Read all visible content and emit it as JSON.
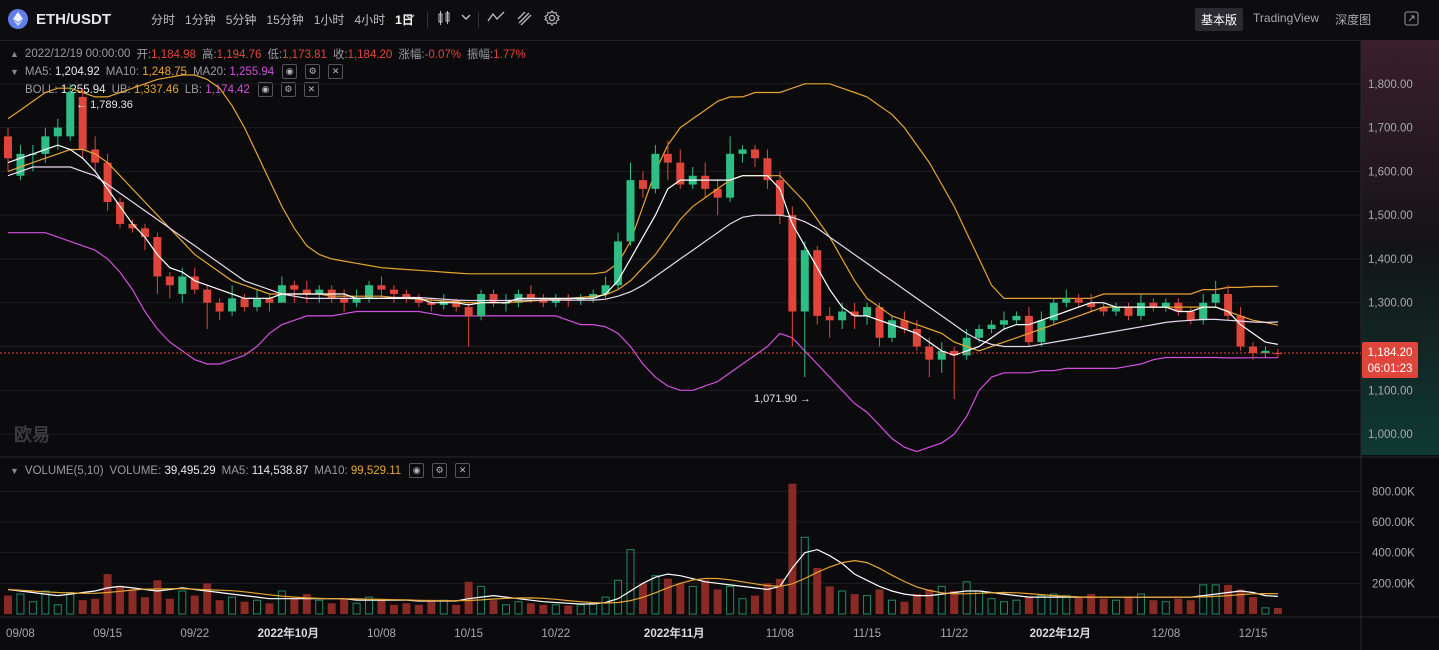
{
  "header": {
    "pair": "ETH/USDT",
    "intervals": [
      "分时",
      "1分钟",
      "5分钟",
      "15分钟",
      "1小时",
      "4小时",
      "1日"
    ],
    "active_interval": "1日",
    "views": [
      "基本版",
      "TradingView",
      "深度图"
    ],
    "active_view": "基本版"
  },
  "ohlc_legend": {
    "date": "2022/12/19 00:00:00",
    "open_label": "开:",
    "open": "1,184.98",
    "high_label": "高:",
    "high": "1,194.76",
    "low_label": "低:",
    "low": "1,173.81",
    "close_label": "收:",
    "close": "1,184.20",
    "change_label": "涨幅:",
    "change": "-0.07%",
    "amp_label": "振幅:",
    "amp": "1.77%"
  },
  "ma_legend": {
    "ma5_label": "MA5:",
    "ma5": "1,204.92",
    "ma10_label": "MA10:",
    "ma10": "1,248.75",
    "ma20_label": "MA20:",
    "ma20": "1,255.94"
  },
  "boll_legend": {
    "label": "BOLL:",
    "mid": "1,255.94",
    "ub_label": "UB:",
    "ub": "1,337.46",
    "lb_label": "LB:",
    "lb": "1,174.42"
  },
  "volume_legend": {
    "label": "VOLUME(5,10)",
    "vol_label": "VOLUME:",
    "vol": "39,495.29",
    "ma5_label": "MA5:",
    "ma5": "114,538.87",
    "ma10_label": "MA10:",
    "ma10": "99,529.11"
  },
  "annotations": {
    "high_marker": "1,789.36",
    "low_marker": "1,071.90"
  },
  "price_tag": {
    "price": "1,184.20",
    "countdown": "06:01:23"
  },
  "watermark": "欧易",
  "price_axis": [
    "1,800.00",
    "1,700.00",
    "1,600.00",
    "1,500.00",
    "1,400.00",
    "1,300.00",
    "1,200.00",
    "1,100.00",
    "1,000.00"
  ],
  "volume_axis": [
    "800.00K",
    "600.00K",
    "400.00K",
    "200.00K"
  ],
  "date_axis": [
    {
      "label": "09/08",
      "bold": false
    },
    {
      "label": "09/15",
      "bold": false
    },
    {
      "label": "09/22",
      "bold": false
    },
    {
      "label": "2022年10月",
      "bold": true
    },
    {
      "label": "10/08",
      "bold": false
    },
    {
      "label": "10/15",
      "bold": false
    },
    {
      "label": "10/22",
      "bold": false
    },
    {
      "label": "2022年11月",
      "bold": true
    },
    {
      "label": "11/08",
      "bold": false
    },
    {
      "label": "11/15",
      "bold": false
    },
    {
      "label": "11/22",
      "bold": false
    },
    {
      "label": "2022年12月",
      "bold": true
    },
    {
      "label": "12/08",
      "bold": false
    },
    {
      "label": "12/15",
      "bold": false
    }
  ],
  "colors": {
    "up": "#2ebd85",
    "down": "#e0453b",
    "ma5": "#ffffff",
    "ma10": "#e7a433",
    "ma20": "#d34fe0",
    "background": "#0b0b0d",
    "grid": "#1d1d22"
  },
  "chart_data": {
    "type": "candlestick",
    "price_range": [
      950,
      1900
    ],
    "volume_range": [
      0,
      900000
    ],
    "candles": [
      [
        1680,
        1630,
        1700,
        1600,
        120000
      ],
      [
        1590,
        1640,
        1660,
        1580,
        130000
      ],
      [
        1640,
        1640,
        1660,
        1600,
        80000
      ],
      [
        1640,
        1680,
        1700,
        1620,
        150000
      ],
      [
        1680,
        1700,
        1720,
        1650,
        60000
      ],
      [
        1680,
        1780,
        1800,
        1670,
        140000
      ],
      [
        1770,
        1650,
        1790,
        1630,
        90000
      ],
      [
        1650,
        1620,
        1680,
        1600,
        100000
      ],
      [
        1620,
        1530,
        1640,
        1510,
        260000
      ],
      [
        1530,
        1480,
        1540,
        1470,
        180000
      ],
      [
        1480,
        1470,
        1490,
        1460,
        160000
      ],
      [
        1470,
        1450,
        1480,
        1420,
        110000
      ],
      [
        1450,
        1360,
        1460,
        1320,
        220000
      ],
      [
        1360,
        1340,
        1370,
        1310,
        100000
      ],
      [
        1320,
        1360,
        1380,
        1300,
        150000
      ],
      [
        1360,
        1330,
        1380,
        1320,
        120000
      ],
      [
        1330,
        1300,
        1340,
        1240,
        200000
      ],
      [
        1300,
        1280,
        1310,
        1260,
        90000
      ],
      [
        1280,
        1310,
        1340,
        1270,
        110000
      ],
      [
        1310,
        1290,
        1320,
        1280,
        80000
      ],
      [
        1290,
        1310,
        1330,
        1280,
        90000
      ],
      [
        1310,
        1300,
        1320,
        1280,
        70000
      ],
      [
        1300,
        1340,
        1360,
        1300,
        150000
      ],
      [
        1340,
        1330,
        1350,
        1300,
        100000
      ],
      [
        1330,
        1320,
        1350,
        1300,
        130000
      ],
      [
        1320,
        1330,
        1340,
        1300,
        90000
      ],
      [
        1330,
        1310,
        1340,
        1300,
        70000
      ],
      [
        1310,
        1300,
        1330,
        1280,
        100000
      ],
      [
        1300,
        1310,
        1330,
        1290,
        70000
      ],
      [
        1310,
        1340,
        1350,
        1300,
        110000
      ],
      [
        1340,
        1330,
        1360,
        1310,
        90000
      ],
      [
        1330,
        1320,
        1340,
        1300,
        60000
      ],
      [
        1320,
        1310,
        1330,
        1300,
        70000
      ],
      [
        1310,
        1300,
        1320,
        1290,
        60000
      ],
      [
        1300,
        1295,
        1310,
        1280,
        80000
      ],
      [
        1295,
        1305,
        1320,
        1285,
        90000
      ],
      [
        1305,
        1290,
        1310,
        1280,
        60000
      ],
      [
        1290,
        1270,
        1300,
        1200,
        210000
      ],
      [
        1270,
        1320,
        1330,
        1260,
        180000
      ],
      [
        1320,
        1300,
        1330,
        1290,
        90000
      ],
      [
        1300,
        1300,
        1320,
        1280,
        60000
      ],
      [
        1300,
        1320,
        1330,
        1290,
        80000
      ],
      [
        1320,
        1310,
        1340,
        1300,
        70000
      ],
      [
        1310,
        1300,
        1320,
        1290,
        60000
      ],
      [
        1300,
        1310,
        1320,
        1290,
        60000
      ],
      [
        1310,
        1305,
        1320,
        1290,
        55000
      ],
      [
        1305,
        1310,
        1320,
        1295,
        60000
      ],
      [
        1310,
        1320,
        1330,
        1300,
        70000
      ],
      [
        1320,
        1340,
        1360,
        1310,
        110000
      ],
      [
        1340,
        1440,
        1460,
        1330,
        220000
      ],
      [
        1440,
        1580,
        1620,
        1430,
        420000
      ],
      [
        1580,
        1560,
        1600,
        1540,
        200000
      ],
      [
        1560,
        1640,
        1660,
        1550,
        250000
      ],
      [
        1640,
        1620,
        1670,
        1580,
        230000
      ],
      [
        1620,
        1570,
        1650,
        1560,
        200000
      ],
      [
        1570,
        1590,
        1610,
        1560,
        180000
      ],
      [
        1590,
        1560,
        1620,
        1540,
        220000
      ],
      [
        1560,
        1540,
        1580,
        1500,
        160000
      ],
      [
        1540,
        1640,
        1680,
        1530,
        180000
      ],
      [
        1640,
        1650,
        1660,
        1620,
        100000
      ],
      [
        1650,
        1630,
        1660,
        1610,
        120000
      ],
      [
        1630,
        1580,
        1650,
        1560,
        200000
      ],
      [
        1580,
        1500,
        1600,
        1480,
        230000
      ],
      [
        1500,
        1280,
        1520,
        1200,
        850000
      ],
      [
        1280,
        1420,
        1440,
        1130,
        500000
      ],
      [
        1420,
        1270,
        1430,
        1250,
        300000
      ],
      [
        1270,
        1260,
        1290,
        1220,
        180000
      ],
      [
        1260,
        1280,
        1300,
        1240,
        150000
      ],
      [
        1280,
        1270,
        1300,
        1240,
        130000
      ],
      [
        1270,
        1290,
        1300,
        1250,
        120000
      ],
      [
        1290,
        1220,
        1300,
        1200,
        160000
      ],
      [
        1220,
        1260,
        1270,
        1210,
        90000
      ],
      [
        1260,
        1240,
        1280,
        1230,
        80000
      ],
      [
        1240,
        1200,
        1260,
        1190,
        130000
      ],
      [
        1200,
        1170,
        1220,
        1130,
        160000
      ],
      [
        1170,
        1190,
        1210,
        1140,
        180000
      ],
      [
        1190,
        1180,
        1200,
        1080,
        150000
      ],
      [
        1180,
        1220,
        1240,
        1170,
        210000
      ],
      [
        1220,
        1240,
        1250,
        1210,
        150000
      ],
      [
        1240,
        1250,
        1260,
        1230,
        100000
      ],
      [
        1250,
        1260,
        1280,
        1240,
        80000
      ],
      [
        1260,
        1270,
        1280,
        1250,
        90000
      ],
      [
        1270,
        1210,
        1290,
        1200,
        110000
      ],
      [
        1210,
        1260,
        1280,
        1200,
        120000
      ],
      [
        1260,
        1300,
        1310,
        1250,
        130000
      ],
      [
        1300,
        1310,
        1330,
        1290,
        120000
      ],
      [
        1310,
        1300,
        1320,
        1290,
        110000
      ],
      [
        1300,
        1290,
        1320,
        1280,
        130000
      ],
      [
        1290,
        1280,
        1300,
        1270,
        100000
      ],
      [
        1280,
        1290,
        1300,
        1270,
        90000
      ],
      [
        1290,
        1270,
        1300,
        1260,
        110000
      ],
      [
        1270,
        1300,
        1320,
        1260,
        130000
      ],
      [
        1300,
        1290,
        1310,
        1280,
        90000
      ],
      [
        1290,
        1300,
        1310,
        1280,
        80000
      ],
      [
        1300,
        1280,
        1310,
        1270,
        100000
      ],
      [
        1280,
        1260,
        1290,
        1250,
        90000
      ],
      [
        1260,
        1300,
        1320,
        1250,
        190000
      ],
      [
        1300,
        1320,
        1350,
        1290,
        190000
      ],
      [
        1320,
        1270,
        1340,
        1260,
        190000
      ],
      [
        1270,
        1200,
        1290,
        1190,
        160000
      ],
      [
        1200,
        1185,
        1210,
        1170,
        110000
      ],
      [
        1185,
        1190,
        1200,
        1175,
        40000
      ],
      [
        1184.98,
        1184.2,
        1194.76,
        1173.81,
        39495
      ]
    ],
    "ma5": [
      1620,
      1630,
      1640,
      1650,
      1660,
      1650,
      1630,
      1600,
      1560,
      1520,
      1480,
      1450,
      1410,
      1380,
      1370,
      1350,
      1340,
      1330,
      1320,
      1310,
      1310,
      1310,
      1320,
      1320,
      1320,
      1320,
      1320,
      1320,
      1310,
      1310,
      1310,
      1310,
      1310,
      1310,
      1300,
      1300,
      1300,
      1295,
      1300,
      1300,
      1300,
      1310,
      1310,
      1310,
      1310,
      1310,
      1310,
      1310,
      1320,
      1350,
      1400,
      1450,
      1500,
      1560,
      1580,
      1580,
      1580,
      1580,
      1580,
      1590,
      1590,
      1590,
      1560,
      1480,
      1430,
      1380,
      1330,
      1290,
      1270,
      1270,
      1260,
      1250,
      1240,
      1230,
      1210,
      1190,
      1180,
      1190,
      1200,
      1220,
      1240,
      1250,
      1250,
      1260,
      1270,
      1280,
      1290,
      1300,
      1300,
      1290,
      1290,
      1290,
      1290,
      1290,
      1280,
      1280,
      1290,
      1290,
      1280,
      1250,
      1230,
      1210,
      1204.92
    ],
    "ma10": [
      1600,
      1610,
      1620,
      1630,
      1640,
      1650,
      1650,
      1640,
      1620,
      1590,
      1560,
      1530,
      1500,
      1470,
      1440,
      1410,
      1390,
      1370,
      1350,
      1340,
      1330,
      1320,
      1320,
      1320,
      1320,
      1320,
      1315,
      1315,
      1315,
      1315,
      1315,
      1312,
      1310,
      1308,
      1306,
      1304,
      1302,
      1300,
      1300,
      1300,
      1300,
      1302,
      1304,
      1306,
      1308,
      1310,
      1312,
      1315,
      1318,
      1330,
      1350,
      1380,
      1410,
      1450,
      1490,
      1520,
      1540,
      1560,
      1580,
      1590,
      1590,
      1590,
      1590,
      1560,
      1530,
      1490,
      1450,
      1400,
      1350,
      1310,
      1290,
      1270,
      1260,
      1250,
      1240,
      1230,
      1210,
      1200,
      1190,
      1200,
      1210,
      1220,
      1230,
      1240,
      1250,
      1260,
      1270,
      1280,
      1290,
      1290,
      1290,
      1290,
      1290,
      1290,
      1290,
      1290,
      1290,
      1290,
      1280,
      1270,
      1260,
      1255,
      1248.75
    ],
    "boll_mid": [
      1590,
      1600,
      1610,
      1610,
      1610,
      1610,
      1600,
      1590,
      1570,
      1550,
      1530,
      1510,
      1490,
      1470,
      1450,
      1430,
      1410,
      1390,
      1370,
      1350,
      1340,
      1330,
      1320,
      1315,
      1310,
      1310,
      1310,
      1310,
      1310,
      1310,
      1310,
      1312,
      1312,
      1312,
      1310,
      1308,
      1306,
      1305,
      1305,
      1305,
      1305,
      1306,
      1306,
      1306,
      1306,
      1306,
      1306,
      1306,
      1308,
      1315,
      1325,
      1340,
      1360,
      1380,
      1400,
      1420,
      1440,
      1460,
      1480,
      1495,
      1500,
      1500,
      1500,
      1495,
      1485,
      1470,
      1450,
      1430,
      1410,
      1390,
      1370,
      1350,
      1330,
      1310,
      1290,
      1270,
      1250,
      1230,
      1215,
      1205,
      1200,
      1200,
      1200,
      1205,
      1210,
      1215,
      1220,
      1225,
      1230,
      1235,
      1240,
      1245,
      1250,
      1255,
      1258,
      1260,
      1262,
      1262,
      1260,
      1258,
      1256,
      1255,
      1255.94
    ],
    "boll_ub": [
      1720,
      1740,
      1760,
      1780,
      1790,
      1790,
      1780,
      1770,
      1770,
      1780,
      1790,
      1800,
      1810,
      1815,
      1820,
      1820,
      1810,
      1790,
      1750,
      1700,
      1640,
      1580,
      1520,
      1470,
      1430,
      1410,
      1400,
      1395,
      1390,
      1385,
      1380,
      1378,
      1376,
      1374,
      1372,
      1370,
      1368,
      1366,
      1366,
      1366,
      1366,
      1366,
      1366,
      1366,
      1366,
      1366,
      1366,
      1366,
      1370,
      1390,
      1440,
      1520,
      1600,
      1660,
      1700,
      1720,
      1740,
      1760,
      1770,
      1770,
      1780,
      1780,
      1780,
      1790,
      1800,
      1800,
      1800,
      1790,
      1780,
      1770,
      1750,
      1730,
      1700,
      1660,
      1620,
      1570,
      1520,
      1460,
      1400,
      1340,
      1310,
      1310,
      1310,
      1310,
      1310,
      1310,
      1310,
      1310,
      1320,
      1320,
      1320,
      1320,
      1320,
      1320,
      1320,
      1320,
      1330,
      1330,
      1335,
      1335,
      1337,
      1337,
      1337.46
    ],
    "boll_lb": [
      1460,
      1460,
      1460,
      1460,
      1450,
      1440,
      1430,
      1420,
      1400,
      1370,
      1330,
      1280,
      1240,
      1210,
      1190,
      1170,
      1160,
      1160,
      1170,
      1180,
      1200,
      1230,
      1250,
      1260,
      1270,
      1270,
      1270,
      1275,
      1280,
      1280,
      1280,
      1280,
      1280,
      1280,
      1275,
      1270,
      1270,
      1270,
      1270,
      1270,
      1270,
      1270,
      1270,
      1270,
      1270,
      1260,
      1250,
      1250,
      1245,
      1230,
      1200,
      1160,
      1130,
      1110,
      1100,
      1100,
      1110,
      1120,
      1140,
      1160,
      1180,
      1200,
      1230,
      1220,
      1190,
      1160,
      1130,
      1100,
      1070,
      1050,
      1020,
      990,
      970,
      960,
      970,
      980,
      1000,
      1040,
      1100,
      1130,
      1140,
      1140,
      1140,
      1145,
      1145,
      1150,
      1150,
      1150,
      1150,
      1150,
      1155,
      1160,
      1170,
      1175,
      1175,
      1175,
      1175,
      1175,
      1174,
      1174,
      1174.42,
      1174.42,
      1174.42
    ],
    "vol_ma5": [
      160000,
      150000,
      140000,
      130000,
      120000,
      130000,
      140000,
      150000,
      170000,
      180000,
      170000,
      160000,
      150000,
      160000,
      170000,
      160000,
      150000,
      140000,
      130000,
      120000,
      110000,
      100000,
      100000,
      100000,
      100000,
      100000,
      100000,
      100000,
      90000,
      90000,
      90000,
      90000,
      90000,
      85000,
      85000,
      85000,
      85000,
      100000,
      110000,
      120000,
      110000,
      100000,
      90000,
      80000,
      75000,
      70000,
      65000,
      65000,
      75000,
      100000,
      150000,
      200000,
      240000,
      260000,
      250000,
      230000,
      210000,
      200000,
      190000,
      180000,
      170000,
      160000,
      180000,
      300000,
      400000,
      420000,
      380000,
      330000,
      260000,
      220000,
      180000,
      150000,
      130000,
      120000,
      120000,
      130000,
      140000,
      150000,
      150000,
      140000,
      130000,
      120000,
      110000,
      110000,
      110000,
      110000,
      110000,
      110000,
      110000,
      110000,
      110000,
      110000,
      110000,
      110000,
      110000,
      110000,
      120000,
      130000,
      140000,
      150000,
      140000,
      120000,
      114538
    ]
  }
}
